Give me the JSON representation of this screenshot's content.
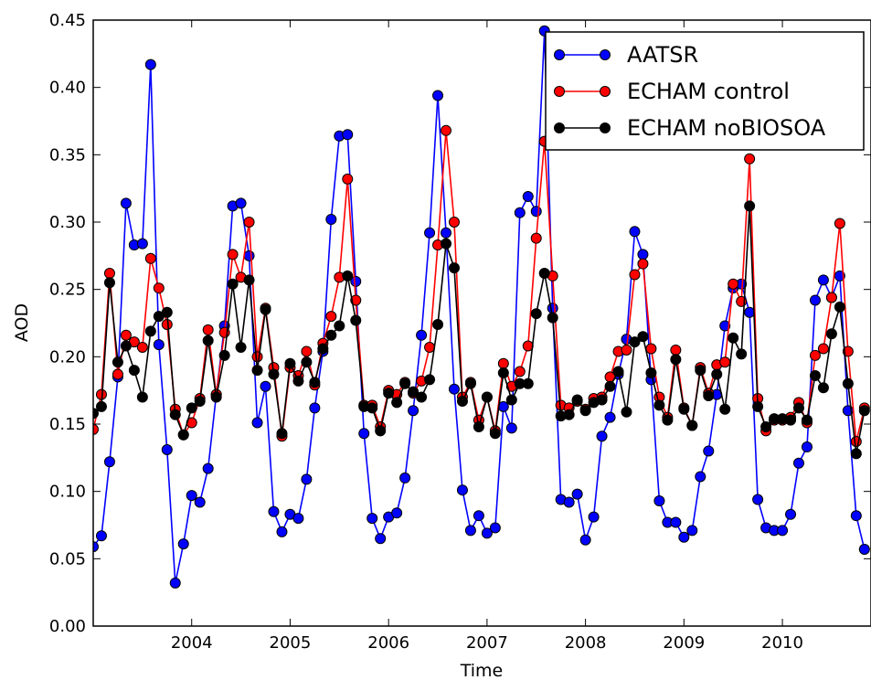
{
  "chart_data": {
    "type": "line",
    "xlabel": "Time",
    "ylabel": "AOD",
    "xlim": [
      2003.0,
      2010.9
    ],
    "ylim": [
      0.0,
      0.45
    ],
    "x_ticks": [
      2004,
      2005,
      2006,
      2007,
      2008,
      2009,
      2010
    ],
    "x_tick_labels": [
      "2004",
      "2005",
      "2006",
      "2007",
      "2008",
      "2009",
      "2010"
    ],
    "y_ticks": [
      0.0,
      0.05,
      0.1,
      0.15,
      0.2,
      0.25,
      0.3,
      0.35,
      0.4,
      0.45
    ],
    "y_tick_labels": [
      "0.00",
      "0.05",
      "0.10",
      "0.15",
      "0.20",
      "0.25",
      "0.30",
      "0.35",
      "0.40",
      "0.45"
    ],
    "grid": false,
    "legend_position": "top-right",
    "x_start": 2003.0,
    "x_step": 0.0833333,
    "series": [
      {
        "name": "AATSR",
        "color": "#0000ff",
        "values": [
          0.059,
          0.067,
          0.122,
          0.185,
          0.314,
          0.283,
          0.284,
          0.417,
          0.209,
          0.131,
          0.032,
          0.061,
          0.097,
          0.092,
          0.117,
          0.172,
          0.223,
          0.312,
          0.314,
          0.275,
          0.151,
          0.178,
          0.085,
          0.07,
          0.083,
          0.08,
          0.109,
          0.162,
          0.204,
          0.302,
          0.364,
          0.365,
          0.256,
          0.143,
          0.08,
          0.065,
          0.081,
          0.084,
          0.11,
          0.16,
          0.216,
          0.292,
          0.394,
          0.292,
          0.176,
          0.101,
          0.071,
          0.082,
          0.069,
          0.073,
          0.163,
          0.147,
          0.307,
          0.319,
          0.308,
          0.442,
          0.236,
          0.094,
          0.092,
          0.098,
          0.064,
          0.081,
          0.141,
          0.155,
          0.187,
          0.213,
          0.293,
          0.276,
          0.183,
          0.093,
          0.077,
          0.077,
          0.066,
          0.071,
          0.111,
          0.13,
          0.172,
          0.223,
          0.251,
          0.254,
          0.233,
          0.094,
          0.073,
          0.071,
          0.071,
          0.083,
          0.121,
          0.133,
          0.242,
          0.257,
          0.244,
          0.26,
          0.16,
          0.082,
          0.057
        ]
      },
      {
        "name": "ECHAM control",
        "color": "#ff0000",
        "values": [
          0.146,
          0.172,
          0.262,
          0.187,
          0.216,
          0.211,
          0.207,
          0.273,
          0.251,
          0.224,
          0.161,
          0.142,
          0.151,
          0.169,
          0.22,
          0.172,
          0.218,
          0.276,
          0.259,
          0.3,
          0.2,
          0.236,
          0.192,
          0.141,
          0.192,
          0.186,
          0.204,
          0.179,
          0.21,
          0.23,
          0.259,
          0.332,
          0.242,
          0.164,
          0.164,
          0.148,
          0.175,
          0.172,
          0.181,
          0.173,
          0.182,
          0.207,
          0.283,
          0.368,
          0.3,
          0.17,
          0.181,
          0.153,
          0.17,
          0.145,
          0.195,
          0.178,
          0.189,
          0.208,
          0.288,
          0.36,
          0.26,
          0.164,
          0.162,
          0.167,
          0.161,
          0.169,
          0.17,
          0.185,
          0.204,
          0.205,
          0.261,
          0.269,
          0.206,
          0.17,
          0.155,
          0.205,
          0.162,
          0.149,
          0.192,
          0.173,
          0.194,
          0.196,
          0.254,
          0.241,
          0.347,
          0.169,
          0.145,
          0.153,
          0.153,
          0.155,
          0.166,
          0.151,
          0.201,
          0.206,
          0.244,
          0.299,
          0.204,
          0.137,
          0.162
        ]
      },
      {
        "name": "ECHAM noBIOSOA",
        "color": "#000000",
        "values": [
          0.158,
          0.163,
          0.255,
          0.196,
          0.208,
          0.19,
          0.17,
          0.219,
          0.23,
          0.233,
          0.157,
          0.142,
          0.162,
          0.167,
          0.212,
          0.17,
          0.201,
          0.254,
          0.207,
          0.257,
          0.19,
          0.235,
          0.187,
          0.143,
          0.195,
          0.182,
          0.196,
          0.181,
          0.206,
          0.216,
          0.223,
          0.26,
          0.227,
          0.163,
          0.162,
          0.145,
          0.173,
          0.166,
          0.18,
          0.174,
          0.17,
          0.183,
          0.224,
          0.284,
          0.266,
          0.167,
          0.18,
          0.148,
          0.17,
          0.143,
          0.188,
          0.168,
          0.18,
          0.18,
          0.232,
          0.262,
          0.229,
          0.156,
          0.157,
          0.168,
          0.16,
          0.166,
          0.168,
          0.178,
          0.189,
          0.159,
          0.211,
          0.215,
          0.188,
          0.164,
          0.153,
          0.198,
          0.161,
          0.149,
          0.19,
          0.171,
          0.187,
          0.161,
          0.214,
          0.202,
          0.312,
          0.163,
          0.148,
          0.154,
          0.154,
          0.153,
          0.162,
          0.153,
          0.186,
          0.177,
          0.217,
          0.237,
          0.18,
          0.128,
          0.16
        ]
      }
    ]
  }
}
